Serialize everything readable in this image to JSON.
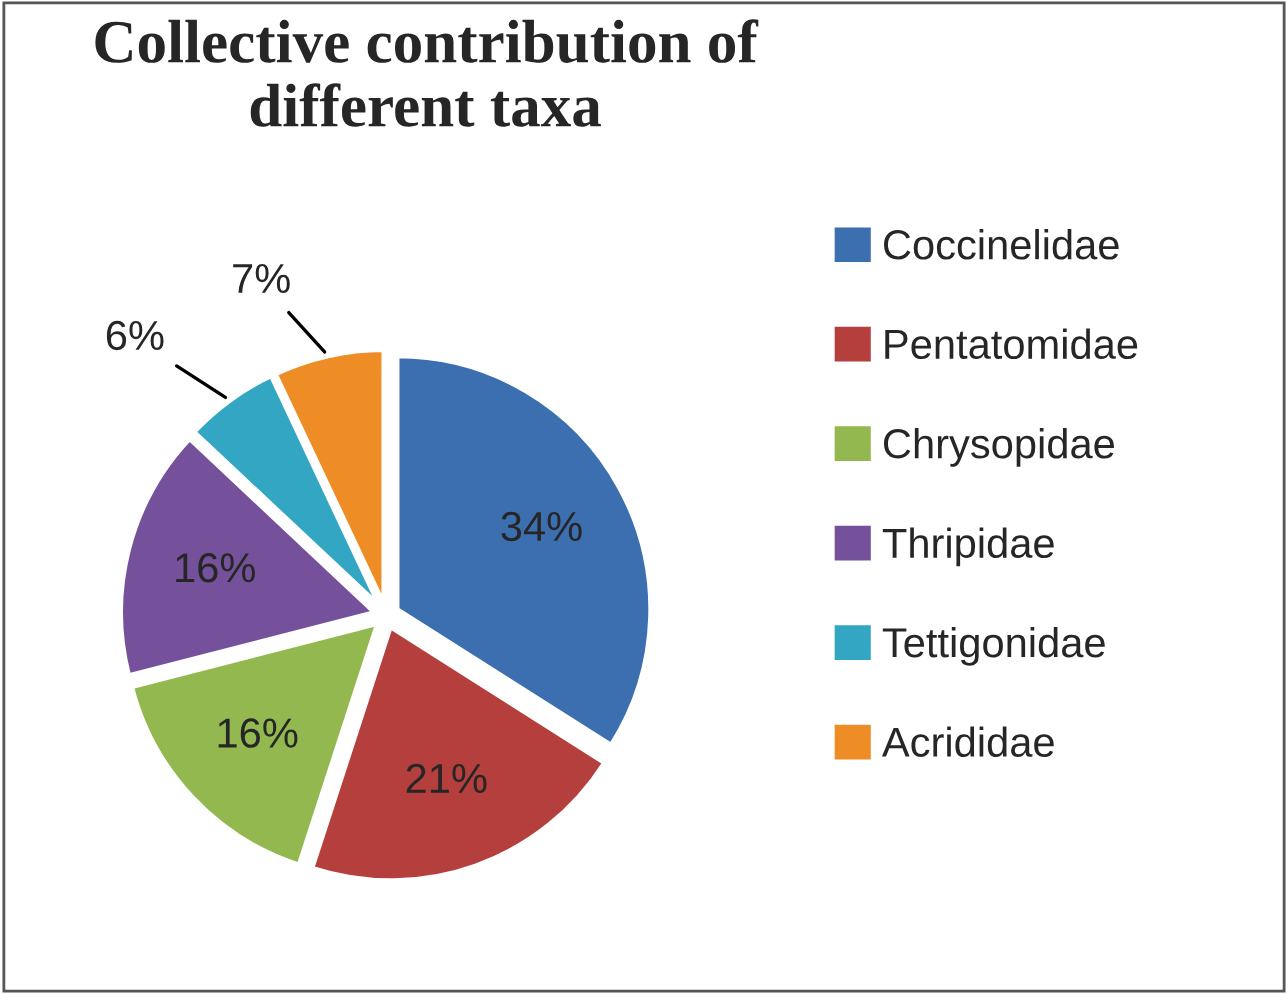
{
  "chart_data": {
    "type": "pie",
    "title": "Collective contribution of different taxa",
    "categories": [
      "Coccinelidae",
      "Pentatomidae",
      "Chrysopidae",
      "Thripidae",
      "Tettigonidae",
      "Acrididae"
    ],
    "values": [
      34,
      21,
      16,
      16,
      6,
      7
    ],
    "colors": [
      "#3b6fb0",
      "#b53f3c",
      "#93b84f",
      "#75519b",
      "#33a6c4",
      "#ee8c25"
    ],
    "value_labels": [
      "34%",
      "21%",
      "16%",
      "16%",
      "6%",
      "7%"
    ],
    "legend": "right"
  }
}
